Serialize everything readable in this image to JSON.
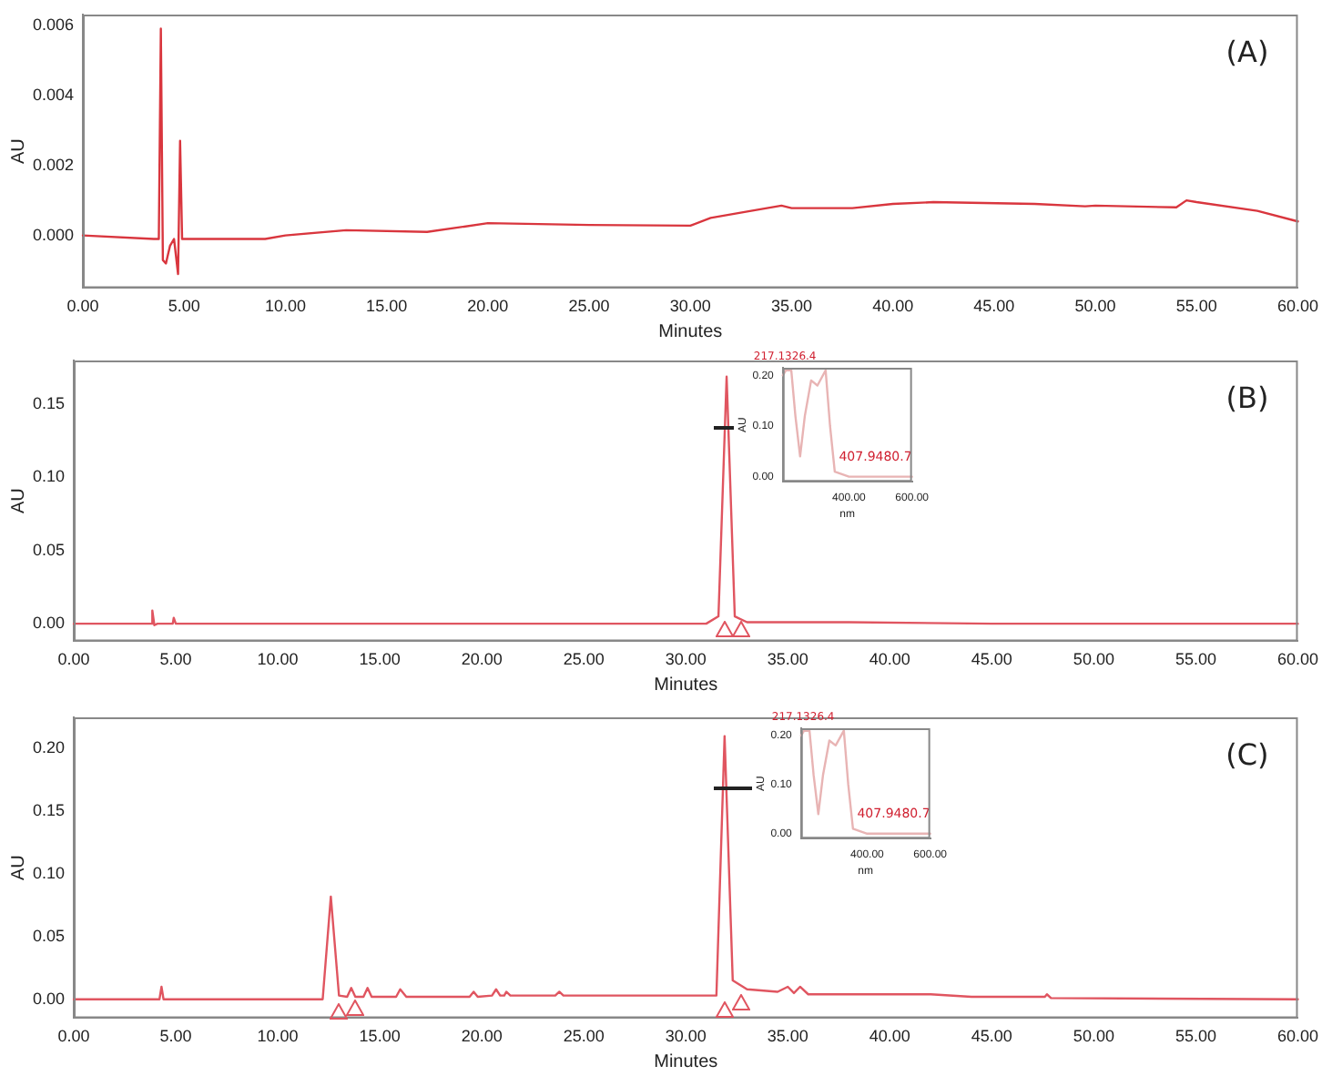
{
  "chart_data": [
    {
      "type": "line",
      "title": "(A)",
      "xlabel": "Minutes",
      "ylabel": "AU",
      "grid": false,
      "legend": false,
      "x": [
        0,
        3.5,
        3.75,
        3.85,
        3.95,
        4.1,
        4.3,
        4.5,
        4.7,
        4.8,
        4.9,
        5.5,
        9,
        10,
        13,
        17,
        20,
        25,
        30,
        31,
        33,
        34.5,
        35,
        38,
        40,
        42,
        47,
        49.5,
        50,
        54,
        54.5,
        55,
        58,
        60
      ],
      "series": [
        {
          "color": "#d9363e",
          "values": [
            0,
            -0.0001,
            -0.0001,
            0.0059,
            -0.0007,
            -0.0008,
            -0.0003,
            -0.0001,
            -0.0011,
            0.0027,
            -0.0001,
            -0.0001,
            -0.0001,
            0,
            0.00015,
            0.0001,
            0.00035,
            0.0003,
            0.00028,
            0.0005,
            0.0007,
            0.00085,
            0.00078,
            0.00078,
            0.0009,
            0.00095,
            0.0009,
            0.00083,
            0.00085,
            0.0008,
            0.001,
            0.00095,
            0.0007,
            0.0004
          ]
        }
      ],
      "xlim": [
        0,
        60
      ],
      "xticks": [
        {
          "value": 0,
          "label": "0.00"
        },
        {
          "value": 5,
          "label": "5.00"
        },
        {
          "value": 10,
          "label": "10.00"
        },
        {
          "value": 15,
          "label": "15.00"
        },
        {
          "value": 20,
          "label": "20.00"
        },
        {
          "value": 25,
          "label": "25.00"
        },
        {
          "value": 30,
          "label": "30.00"
        },
        {
          "value": 35,
          "label": "35.00"
        },
        {
          "value": 40,
          "label": "40.00"
        },
        {
          "value": 45,
          "label": "45.00"
        },
        {
          "value": 50,
          "label": "50.00"
        },
        {
          "value": 55,
          "label": "55.00"
        },
        {
          "value": 60,
          "label": "60.00"
        }
      ],
      "ylim": [
        -0.0015,
        0.0063
      ],
      "yticks": [
        {
          "value": 0,
          "label": "0.000"
        },
        {
          "value": 0.002,
          "label": "0.002"
        },
        {
          "value": 0.004,
          "label": "0.004"
        },
        {
          "value": 0.006,
          "label": "0.006"
        }
      ]
    },
    {
      "type": "line",
      "title": "(B)",
      "xlabel": "Minutes",
      "ylabel": "AU",
      "grid": false,
      "legend": false,
      "x": [
        0,
        3.8,
        3.85,
        3.95,
        4.1,
        4.85,
        4.9,
        5,
        31,
        31.6,
        32,
        32.4,
        33,
        38,
        45,
        60
      ],
      "series": [
        {
          "color": "#e05560",
          "values": [
            0,
            0,
            0.009,
            -0.001,
            0,
            0,
            0.004,
            0,
            0,
            0.005,
            0.169,
            0.005,
            0.001,
            0.001,
            0,
            0
          ]
        }
      ],
      "xlim": [
        0,
        60
      ],
      "xticks": [
        {
          "value": 0,
          "label": "0.00"
        },
        {
          "value": 5,
          "label": "5.00"
        },
        {
          "value": 10,
          "label": "10.00"
        },
        {
          "value": 15,
          "label": "15.00"
        },
        {
          "value": 20,
          "label": "20.00"
        },
        {
          "value": 25,
          "label": "25.00"
        },
        {
          "value": 30,
          "label": "30.00"
        },
        {
          "value": 35,
          "label": "35.00"
        },
        {
          "value": 40,
          "label": "40.00"
        },
        {
          "value": 45,
          "label": "45.00"
        },
        {
          "value": 50,
          "label": "50.00"
        },
        {
          "value": 55,
          "label": "55.00"
        },
        {
          "value": 60,
          "label": "60.00"
        }
      ],
      "ylim": [
        -0.012,
        0.18
      ],
      "yticks": [
        {
          "value": 0,
          "label": "0.00"
        },
        {
          "value": 0.05,
          "label": "0.05"
        },
        {
          "value": 0.1,
          "label": "0.10"
        },
        {
          "value": 0.15,
          "label": "0.15"
        }
      ]
    },
    {
      "type": "line",
      "xlabel": "nm",
      "ylabel": "AU",
      "grid": false,
      "legend": false,
      "x": [
        190,
        200,
        217,
        230,
        245,
        260,
        280,
        300,
        326,
        340,
        355,
        400,
        600
      ],
      "series": [
        {
          "color": "#e8b4b4",
          "values": [
            0.2,
            0.21,
            0.21,
            0.12,
            0.04,
            0.12,
            0.19,
            0.18,
            0.21,
            0.1,
            0.01,
            0,
            0
          ]
        }
      ],
      "annotations": [
        "217.1326.4",
        "407.9480.7"
      ],
      "xlim": [
        190,
        600
      ],
      "xticks": [
        {
          "value": 400,
          "label": "400.00"
        },
        {
          "value": 600,
          "label": "600.00"
        }
      ],
      "ylim": [
        -0.01,
        0.215
      ],
      "yticks": [
        {
          "value": 0,
          "label": "0.00"
        },
        {
          "value": 0.1,
          "label": "0.10"
        },
        {
          "value": 0.2,
          "label": "0.20"
        }
      ]
    },
    {
      "type": "line",
      "title": "(C)",
      "xlabel": "Minutes",
      "ylabel": "AU",
      "grid": false,
      "legend": false,
      "x": [
        0,
        4.2,
        4.3,
        4.4,
        12.2,
        12.6,
        13,
        13.4,
        13.6,
        13.8,
        14.2,
        14.4,
        14.6,
        15.8,
        16,
        16.3,
        19.4,
        19.6,
        19.8,
        20.5,
        20.7,
        20.9,
        21.1,
        21.2,
        21.4,
        23.6,
        23.8,
        24,
        31.5,
        31.9,
        32.3,
        33,
        34.5,
        35,
        35.3,
        35.6,
        36,
        42,
        44,
        47.6,
        47.7,
        47.9,
        60
      ],
      "series": [
        {
          "color": "#e05560",
          "values": [
            0,
            0,
            0.01,
            0,
            0,
            0.082,
            0.003,
            0.002,
            0.009,
            0.002,
            0.002,
            0.009,
            0.002,
            0.002,
            0.008,
            0.002,
            0.002,
            0.006,
            0.002,
            0.003,
            0.008,
            0.003,
            0.003,
            0.006,
            0.003,
            0.003,
            0.006,
            0.003,
            0.003,
            0.21,
            0.015,
            0.008,
            0.006,
            0.01,
            0.005,
            0.01,
            0.004,
            0.004,
            0.002,
            0.002,
            0.004,
            0.001,
            0
          ]
        }
      ],
      "xlim": [
        0,
        60
      ],
      "xticks": [
        {
          "value": 0,
          "label": "0.00"
        },
        {
          "value": 5,
          "label": "5.00"
        },
        {
          "value": 10,
          "label": "10.00"
        },
        {
          "value": 15,
          "label": "15.00"
        },
        {
          "value": 20,
          "label": "20.00"
        },
        {
          "value": 25,
          "label": "25.00"
        },
        {
          "value": 30,
          "label": "30.00"
        },
        {
          "value": 35,
          "label": "35.00"
        },
        {
          "value": 40,
          "label": "40.00"
        },
        {
          "value": 45,
          "label": "45.00"
        },
        {
          "value": 50,
          "label": "50.00"
        },
        {
          "value": 55,
          "label": "55.00"
        },
        {
          "value": 60,
          "label": "60.00"
        }
      ],
      "ylim": [
        -0.015,
        0.225
      ],
      "yticks": [
        {
          "value": 0,
          "label": "0.00"
        },
        {
          "value": 0.05,
          "label": "0.05"
        },
        {
          "value": 0.1,
          "label": "0.10"
        },
        {
          "value": 0.15,
          "label": "0.15"
        },
        {
          "value": 0.2,
          "label": "0.20"
        }
      ]
    },
    {
      "type": "line",
      "xlabel": "nm",
      "ylabel": "AU",
      "grid": false,
      "legend": false,
      "x": [
        190,
        200,
        217,
        230,
        245,
        260,
        280,
        300,
        326,
        340,
        355,
        400,
        600
      ],
      "series": [
        {
          "color": "#e8b4b4",
          "values": [
            0.2,
            0.21,
            0.21,
            0.12,
            0.04,
            0.12,
            0.19,
            0.18,
            0.21,
            0.1,
            0.01,
            0,
            0
          ]
        }
      ],
      "annotations": [
        "217.1326.4",
        "407.9480.7"
      ],
      "xlim": [
        190,
        600
      ],
      "xticks": [
        {
          "value": 400,
          "label": "400.00"
        },
        {
          "value": 600,
          "label": "600.00"
        }
      ],
      "ylim": [
        -0.01,
        0.215
      ],
      "yticks": [
        {
          "value": 0,
          "label": "0.00"
        },
        {
          "value": 0.1,
          "label": "0.10"
        },
        {
          "value": 0.2,
          "label": "0.20"
        }
      ]
    }
  ]
}
